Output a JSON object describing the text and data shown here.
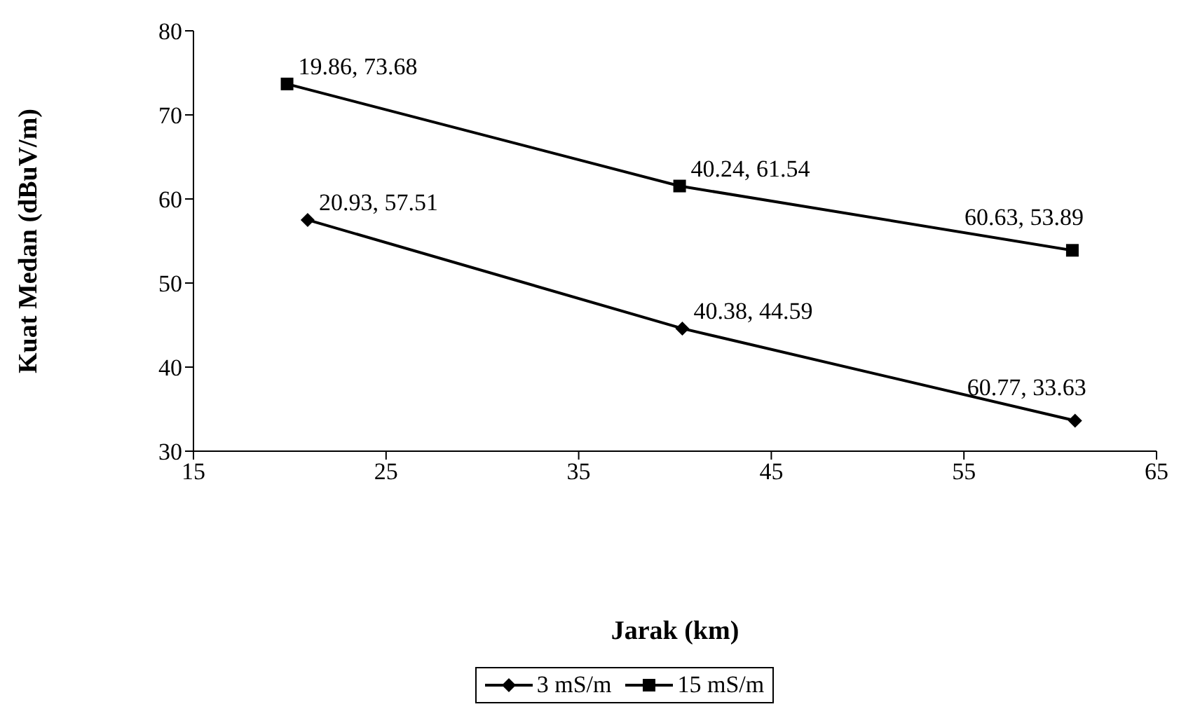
{
  "chart_data": {
    "type": "line",
    "xlabel": "Jarak (km)",
    "ylabel": "Kuat Medan (dBuV/m)",
    "xlim": [
      15,
      65
    ],
    "xticks": [
      15,
      25,
      35,
      45,
      55,
      65
    ],
    "ylim": [
      30,
      80
    ],
    "yticks": [
      30,
      40,
      50,
      60,
      70,
      80
    ],
    "grid": false,
    "legend": "bottom",
    "series": [
      {
        "name": "3 mS/m",
        "color": "#000000",
        "marker": "diamond",
        "x": [
          20.93,
          40.38,
          60.77
        ],
        "values": [
          57.51,
          44.59,
          33.63
        ],
        "value_labels": [
          "20.93, 57.51",
          "40.38, 44.59",
          "60.77, 33.63"
        ]
      },
      {
        "name": "15 mS/m",
        "color": "#000000",
        "marker": "square",
        "x": [
          19.86,
          40.24,
          60.63
        ],
        "values": [
          73.68,
          61.54,
          53.89
        ],
        "value_labels": [
          "19.86, 73.68",
          "40.24, 61.54",
          "60.63, 53.89"
        ]
      }
    ]
  }
}
